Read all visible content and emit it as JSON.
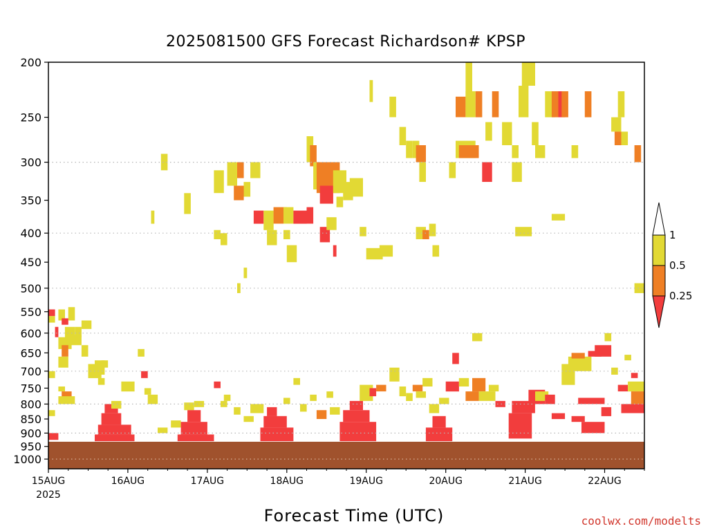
{
  "chart_data": {
    "type": "heatmap",
    "title": "2025081500 GFS Forecast Richardson# KPSP",
    "xlabel": "Forecast Time (UTC)",
    "ylabel": "",
    "credit": "coolwx.com/modelts",
    "y_scale": "log-pressure",
    "ylim": [
      1040,
      200
    ],
    "x_range_hours": [
      0,
      180
    ],
    "y_ticks": [
      200,
      250,
      300,
      350,
      400,
      450,
      500,
      550,
      600,
      650,
      700,
      750,
      800,
      850,
      900,
      950,
      1000
    ],
    "y_gridlines": [
      300,
      400,
      500,
      600,
      700,
      800,
      900,
      1000
    ],
    "x_ticks": [
      {
        "hour": 0,
        "label": "15AUG",
        "sublabel": "2025"
      },
      {
        "hour": 24,
        "label": "16AUG",
        "sublabel": ""
      },
      {
        "hour": 48,
        "label": "17AUG",
        "sublabel": ""
      },
      {
        "hour": 72,
        "label": "18AUG",
        "sublabel": ""
      },
      {
        "hour": 96,
        "label": "19AUG",
        "sublabel": ""
      },
      {
        "hour": 120,
        "label": "20AUG",
        "sublabel": ""
      },
      {
        "hour": 144,
        "label": "21AUG",
        "sublabel": ""
      },
      {
        "hour": 168,
        "label": "22AUG",
        "sublabel": ""
      }
    ],
    "legend": {
      "placement": "right",
      "levels": [
        {
          "label": "0.25",
          "color": "#f23d3d"
        },
        {
          "label": "0.5",
          "color": "#ef7f24"
        },
        {
          "label": "1",
          "color": "#e2d934"
        }
      ]
    },
    "colors": {
      "ri_lt_025": "#f23d3d",
      "ri_025_05": "#ef7f24",
      "ri_05_1": "#e2d934",
      "ground": "#a0522d"
    },
    "surface_pressure_hpa": 932,
    "cells_note_units": "each cell: hour start, hour end, pressure top (hPa), pressure bottom (hPa), category",
    "cells": [
      [
        0,
        2,
        545,
        560,
        "ri_lt_025"
      ],
      [
        0,
        2,
        560,
        575,
        "ri_05_1"
      ],
      [
        3,
        5,
        545,
        570,
        "ri_05_1"
      ],
      [
        6,
        8,
        540,
        570,
        "ri_05_1"
      ],
      [
        2,
        3,
        585,
        610,
        "ri_lt_025"
      ],
      [
        4,
        6,
        565,
        580,
        "ri_lt_025"
      ],
      [
        5,
        8,
        585,
        620,
        "ri_05_1"
      ],
      [
        3,
        7,
        610,
        640,
        "ri_05_1"
      ],
      [
        4,
        6,
        630,
        660,
        "ri_025_05"
      ],
      [
        3,
        6,
        660,
        690,
        "ri_05_1"
      ],
      [
        8,
        10,
        585,
        610,
        "ri_05_1"
      ],
      [
        10,
        13,
        570,
        590,
        "ri_05_1"
      ],
      [
        7,
        10,
        605,
        630,
        "ri_05_1"
      ],
      [
        0,
        2,
        700,
        720,
        "ri_05_1"
      ],
      [
        3,
        5,
        745,
        760,
        "ri_05_1"
      ],
      [
        4,
        7,
        760,
        790,
        "ri_025_05"
      ],
      [
        3,
        8,
        775,
        800,
        "ri_05_1"
      ],
      [
        0,
        2,
        820,
        840,
        "ri_05_1"
      ],
      [
        0,
        3,
        900,
        925,
        "ri_lt_025"
      ],
      [
        12,
        16,
        680,
        720,
        "ri_05_1"
      ],
      [
        16,
        18,
        670,
        690,
        "ri_05_1"
      ],
      [
        15,
        17,
        720,
        740,
        "ri_05_1"
      ],
      [
        17,
        21,
        800,
        830,
        "ri_lt_025"
      ],
      [
        16,
        22,
        830,
        870,
        "ri_lt_025"
      ],
      [
        15,
        25,
        870,
        905,
        "ri_lt_025"
      ],
      [
        14,
        26,
        905,
        930,
        "ri_lt_025"
      ],
      [
        19,
        22,
        790,
        815,
        "ri_05_1"
      ],
      [
        27,
        29,
        640,
        660,
        "ri_05_1"
      ],
      [
        28,
        30,
        700,
        720,
        "ri_lt_025"
      ],
      [
        29,
        31,
        750,
        770,
        "ri_05_1"
      ],
      [
        30,
        33,
        770,
        800,
        "ri_05_1"
      ],
      [
        37,
        40,
        855,
        880,
        "ri_05_1"
      ],
      [
        41,
        44,
        795,
        820,
        "ri_05_1"
      ],
      [
        42,
        46,
        820,
        860,
        "ri_lt_025"
      ],
      [
        40,
        48,
        860,
        905,
        "ri_lt_025"
      ],
      [
        39,
        50,
        905,
        930,
        "ri_lt_025"
      ],
      [
        44,
        47,
        790,
        810,
        "ri_05_1"
      ],
      [
        50,
        52,
        730,
        750,
        "ri_lt_025"
      ],
      [
        53,
        55,
        770,
        790,
        "ri_05_1"
      ],
      [
        56,
        58,
        810,
        835,
        "ri_05_1"
      ],
      [
        59,
        62,
        840,
        860,
        "ri_05_1"
      ],
      [
        61,
        65,
        800,
        830,
        "ri_05_1"
      ],
      [
        66,
        69,
        810,
        840,
        "ri_lt_025"
      ],
      [
        65,
        72,
        840,
        880,
        "ri_lt_025"
      ],
      [
        64,
        74,
        880,
        930,
        "ri_lt_025"
      ],
      [
        71,
        73,
        780,
        800,
        "ri_05_1"
      ],
      [
        76,
        78,
        800,
        825,
        "ri_05_1"
      ],
      [
        79,
        81,
        770,
        790,
        "ri_05_1"
      ],
      [
        81,
        84,
        820,
        850,
        "ri_025_05"
      ],
      [
        85,
        88,
        810,
        835,
        "ri_05_1"
      ],
      [
        84,
        86,
        760,
        780,
        "ri_05_1"
      ],
      [
        91,
        95,
        790,
        820,
        "ri_lt_025"
      ],
      [
        89,
        97,
        820,
        860,
        "ri_lt_025"
      ],
      [
        88,
        99,
        860,
        930,
        "ri_lt_025"
      ],
      [
        94,
        98,
        740,
        790,
        "ri_05_1"
      ],
      [
        97,
        99,
        750,
        775,
        "ri_lt_025"
      ],
      [
        99,
        102,
        740,
        760,
        "ri_025_05"
      ],
      [
        103,
        106,
        690,
        730,
        "ri_05_1"
      ],
      [
        106,
        108,
        745,
        775,
        "ri_05_1"
      ],
      [
        108,
        110,
        765,
        790,
        "ri_05_1"
      ],
      [
        110,
        113,
        740,
        760,
        "ri_025_05"
      ],
      [
        111,
        114,
        760,
        780,
        "ri_05_1"
      ],
      [
        113,
        116,
        720,
        745,
        "ri_05_1"
      ],
      [
        115,
        118,
        800,
        830,
        "ri_05_1"
      ],
      [
        118,
        121,
        780,
        800,
        "ri_05_1"
      ],
      [
        116,
        120,
        840,
        880,
        "ri_lt_025"
      ],
      [
        114,
        122,
        880,
        930,
        "ri_lt_025"
      ],
      [
        120,
        124,
        730,
        760,
        "ri_lt_025"
      ],
      [
        122,
        124,
        650,
        680,
        "ri_lt_025"
      ],
      [
        124,
        127,
        720,
        745,
        "ri_05_1"
      ],
      [
        126,
        130,
        760,
        790,
        "ri_025_05"
      ],
      [
        128,
        132,
        720,
        760,
        "ri_025_05"
      ],
      [
        130,
        135,
        760,
        790,
        "ri_05_1"
      ],
      [
        133,
        136,
        740,
        760,
        "ri_05_1"
      ],
      [
        128,
        131,
        600,
        620,
        "ri_05_1"
      ],
      [
        135,
        138,
        790,
        810,
        "ri_lt_025"
      ],
      [
        140,
        147,
        790,
        830,
        "ri_lt_025"
      ],
      [
        139,
        146,
        830,
        920,
        "ri_lt_025"
      ],
      [
        145,
        150,
        755,
        800,
        "ri_lt_025"
      ],
      [
        147,
        151,
        760,
        790,
        "ri_05_1"
      ],
      [
        150,
        153,
        770,
        800,
        "ri_lt_025"
      ],
      [
        152,
        156,
        830,
        850,
        "ri_lt_025"
      ],
      [
        155,
        159,
        680,
        740,
        "ri_05_1"
      ],
      [
        157,
        164,
        660,
        700,
        "ri_05_1"
      ],
      [
        158,
        162,
        650,
        665,
        "ri_025_05"
      ],
      [
        163,
        167,
        645,
        660,
        "ri_lt_025"
      ],
      [
        165,
        170,
        630,
        660,
        "ri_lt_025"
      ],
      [
        168,
        170,
        600,
        620,
        "ri_05_1"
      ],
      [
        160,
        168,
        780,
        800,
        "ri_lt_025"
      ],
      [
        158,
        162,
        840,
        860,
        "ri_lt_025"
      ],
      [
        161,
        168,
        860,
        900,
        "ri_lt_025"
      ],
      [
        167,
        170,
        810,
        840,
        "ri_lt_025"
      ],
      [
        170,
        172,
        690,
        710,
        "ri_05_1"
      ],
      [
        172,
        175,
        740,
        760,
        "ri_lt_025"
      ],
      [
        174,
        176,
        655,
        670,
        "ri_05_1"
      ],
      [
        175,
        180,
        730,
        760,
        "ri_05_1"
      ],
      [
        176,
        180,
        760,
        800,
        "ri_025_05"
      ],
      [
        173,
        180,
        800,
        830,
        "ri_lt_025"
      ],
      [
        176,
        178,
        705,
        720,
        "ri_lt_025"
      ],
      [
        10,
        12,
        630,
        660,
        "ri_05_1"
      ],
      [
        14,
        17,
        670,
        710,
        "ri_05_1"
      ],
      [
        22,
        26,
        730,
        760,
        "ri_05_1"
      ],
      [
        33,
        36,
        880,
        900,
        "ri_05_1"
      ],
      [
        52,
        54,
        790,
        810,
        "ri_05_1"
      ],
      [
        74,
        76,
        720,
        740,
        "ri_05_1"
      ],
      [
        34,
        36,
        290,
        310,
        "ri_05_1"
      ],
      [
        31,
        32,
        365,
        385,
        "ri_05_1"
      ],
      [
        41,
        43,
        340,
        370,
        "ri_05_1"
      ],
      [
        50,
        53,
        310,
        340,
        "ri_05_1"
      ],
      [
        54,
        57,
        300,
        330,
        "ri_05_1"
      ],
      [
        57,
        59,
        300,
        320,
        "ri_025_05"
      ],
      [
        59,
        61,
        325,
        345,
        "ri_05_1"
      ],
      [
        50,
        52,
        395,
        410,
        "ri_05_1"
      ],
      [
        52,
        54,
        400,
        420,
        "ri_05_1"
      ],
      [
        61,
        64,
        300,
        320,
        "ri_05_1"
      ],
      [
        56,
        59,
        330,
        350,
        "ri_025_05"
      ],
      [
        62,
        65,
        365,
        385,
        "ri_lt_025"
      ],
      [
        65,
        68,
        365,
        395,
        "ri_05_1"
      ],
      [
        68,
        72,
        360,
        385,
        "ri_025_05"
      ],
      [
        71,
        74,
        360,
        385,
        "ri_05_1"
      ],
      [
        74,
        78,
        365,
        385,
        "ri_lt_025"
      ],
      [
        78,
        80,
        360,
        385,
        "ri_lt_025"
      ],
      [
        66,
        69,
        395,
        420,
        "ri_05_1"
      ],
      [
        71,
        73,
        395,
        410,
        "ri_05_1"
      ],
      [
        72,
        75,
        420,
        450,
        "ri_05_1"
      ],
      [
        78,
        80,
        270,
        300,
        "ri_05_1"
      ],
      [
        79,
        81,
        280,
        305,
        "ri_025_05"
      ],
      [
        80,
        82,
        300,
        335,
        "ri_05_1"
      ],
      [
        81,
        88,
        300,
        340,
        "ri_025_05"
      ],
      [
        82,
        86,
        330,
        355,
        "ri_lt_025"
      ],
      [
        86,
        90,
        310,
        340,
        "ri_05_1"
      ],
      [
        89,
        92,
        325,
        350,
        "ri_05_1"
      ],
      [
        91,
        95,
        320,
        345,
        "ri_05_1"
      ],
      [
        82,
        85,
        390,
        415,
        "ri_lt_025"
      ],
      [
        84,
        87,
        375,
        395,
        "ri_05_1"
      ],
      [
        87,
        89,
        345,
        360,
        "ri_05_1"
      ],
      [
        94,
        96,
        390,
        405,
        "ri_05_1"
      ],
      [
        96,
        101,
        425,
        445,
        "ri_05_1"
      ],
      [
        100,
        104,
        420,
        440,
        "ri_05_1"
      ],
      [
        103,
        105,
        230,
        250,
        "ri_05_1"
      ],
      [
        106,
        108,
        260,
        280,
        "ri_05_1"
      ],
      [
        108,
        110,
        275,
        295,
        "ri_05_1"
      ],
      [
        110,
        112,
        275,
        295,
        "ri_05_1"
      ],
      [
        111,
        114,
        280,
        300,
        "ri_025_05"
      ],
      [
        112,
        114,
        300,
        325,
        "ri_05_1"
      ],
      [
        111,
        114,
        390,
        410,
        "ri_05_1"
      ],
      [
        113,
        115,
        395,
        410,
        "ri_025_05"
      ],
      [
        115,
        117,
        385,
        405,
        "ri_05_1"
      ],
      [
        116,
        118,
        420,
        440,
        "ri_05_1"
      ],
      [
        121,
        123,
        300,
        320,
        "ri_05_1"
      ],
      [
        126,
        128,
        200,
        240,
        "ri_05_1"
      ],
      [
        123,
        126,
        230,
        250,
        "ri_025_05"
      ],
      [
        126,
        129,
        225,
        250,
        "ri_05_1"
      ],
      [
        129,
        131,
        225,
        250,
        "ri_025_05"
      ],
      [
        123,
        129,
        275,
        295,
        "ri_05_1"
      ],
      [
        124,
        130,
        280,
        295,
        "ri_025_05"
      ],
      [
        131,
        134,
        300,
        325,
        "ri_lt_025"
      ],
      [
        132,
        134,
        255,
        275,
        "ri_05_1"
      ],
      [
        134,
        136,
        225,
        250,
        "ri_025_05"
      ],
      [
        137,
        140,
        255,
        280,
        "ri_05_1"
      ],
      [
        140,
        142,
        280,
        295,
        "ri_05_1"
      ],
      [
        140,
        143,
        300,
        325,
        "ri_05_1"
      ],
      [
        143,
        147,
        200,
        220,
        "ri_05_1"
      ],
      [
        142,
        145,
        220,
        250,
        "ri_05_1"
      ],
      [
        146,
        148,
        255,
        280,
        "ri_05_1"
      ],
      [
        147,
        150,
        280,
        295,
        "ri_05_1"
      ],
      [
        150,
        153,
        225,
        250,
        "ri_05_1"
      ],
      [
        152,
        154,
        225,
        250,
        "ri_025_05"
      ],
      [
        154,
        156,
        225,
        250,
        "ri_lt_025"
      ],
      [
        155,
        157,
        225,
        250,
        "ri_025_05"
      ],
      [
        158,
        160,
        280,
        295,
        "ri_05_1"
      ],
      [
        162,
        164,
        225,
        250,
        "ri_025_05"
      ],
      [
        170,
        173,
        250,
        265,
        "ri_05_1"
      ],
      [
        172,
        174,
        225,
        250,
        "ri_05_1"
      ],
      [
        171,
        173,
        265,
        280,
        "ri_025_05"
      ],
      [
        173,
        175,
        265,
        280,
        "ri_05_1"
      ],
      [
        177,
        179,
        280,
        300,
        "ri_025_05"
      ],
      [
        177,
        180,
        490,
        510,
        "ri_05_1"
      ],
      [
        141,
        146,
        390,
        405,
        "ri_05_1"
      ],
      [
        152,
        156,
        370,
        380,
        "ri_05_1"
      ],
      [
        59,
        60,
        460,
        480,
        "ri_05_1"
      ],
      [
        57,
        58,
        490,
        510,
        "ri_05_1"
      ],
      [
        86,
        87,
        420,
        440,
        "ri_lt_025"
      ],
      [
        97,
        98,
        215,
        235,
        "ri_05_1"
      ]
    ]
  }
}
